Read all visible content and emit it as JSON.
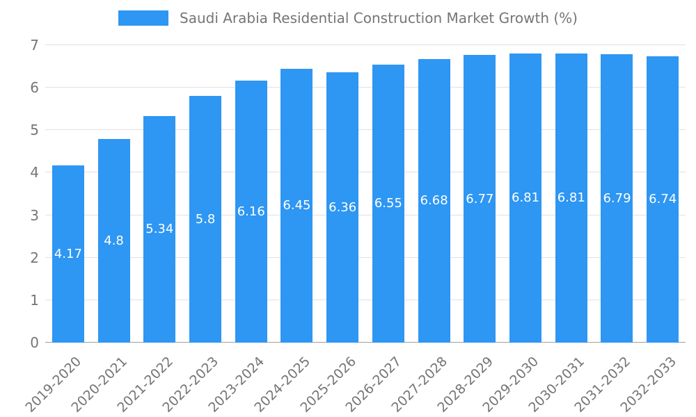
{
  "legend": {
    "position": "top"
  },
  "chart_data": {
    "type": "bar",
    "title": "Saudi Arabia Residential Construction Market Growth (%)",
    "categories": [
      "2019-2020",
      "2020-2021",
      "2021-2022",
      "2022-2023",
      "2023-2024",
      "2024-2025",
      "2025-2026",
      "2026-2027",
      "2027-2028",
      "2028-2029",
      "2029-2030",
      "2030-2031",
      "2031-2032",
      "2032-2033"
    ],
    "values": [
      4.17,
      4.8,
      5.34,
      5.8,
      6.16,
      6.45,
      6.36,
      6.55,
      6.68,
      6.77,
      6.81,
      6.81,
      6.79,
      6.74
    ],
    "xlabel": "",
    "ylabel": "",
    "ylim": [
      0,
      7
    ],
    "yticks": [
      0,
      1,
      2,
      3,
      4,
      5,
      6,
      7
    ],
    "grid": true,
    "legend_position": "top",
    "bar_color": "#2e96f3",
    "value_label_color": "#ffffff",
    "axis_text_color": "#757575",
    "gridline_color": "#e0e0e0"
  }
}
